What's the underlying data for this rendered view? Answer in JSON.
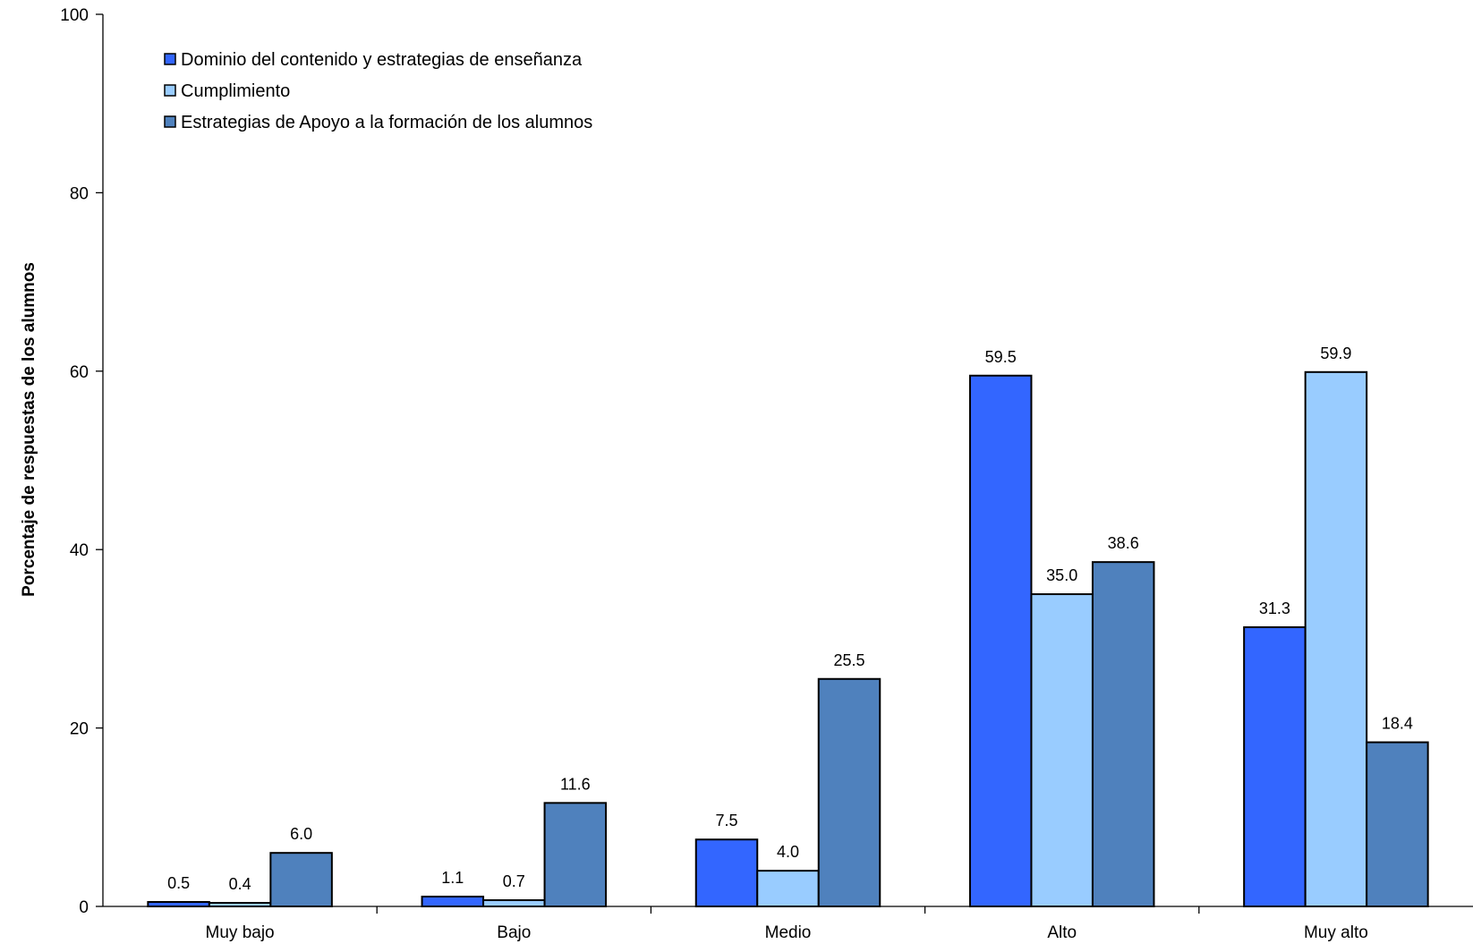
{
  "chart_data": {
    "type": "bar",
    "title": "",
    "ylabel": "Porcentaje de respuestas de los alumnos",
    "xlabel": "",
    "ylim": [
      0,
      100
    ],
    "yticks": [
      0,
      20,
      40,
      60,
      80,
      100
    ],
    "categories": [
      "Muy bajo",
      "Bajo",
      "Medio",
      "Alto",
      "Muy alto"
    ],
    "series": [
      {
        "name": "Dominio del contenido y estrategias de enseñanza",
        "color": "#3366FF",
        "values": [
          0.5,
          1.1,
          7.5,
          59.5,
          31.3
        ],
        "labels": [
          "0.5",
          "1.1",
          "7.5",
          "59.5",
          "31.3"
        ]
      },
      {
        "name": "Cumplimiento",
        "color": "#99CCFF",
        "values": [
          0.4,
          0.7,
          4.0,
          35.0,
          59.9
        ],
        "labels": [
          "0.4",
          "0.7",
          "4.0",
          "35.0",
          "59.9"
        ]
      },
      {
        "name": "Estrategias de Apoyo a la formación de los alumnos",
        "color": "#4F81BD",
        "values": [
          6.0,
          11.6,
          25.5,
          38.6,
          18.4
        ],
        "labels": [
          "6.0",
          "11.6",
          "25.5",
          "38.6",
          "18.4"
        ]
      }
    ],
    "legend_position": "top-left",
    "grid": false
  }
}
